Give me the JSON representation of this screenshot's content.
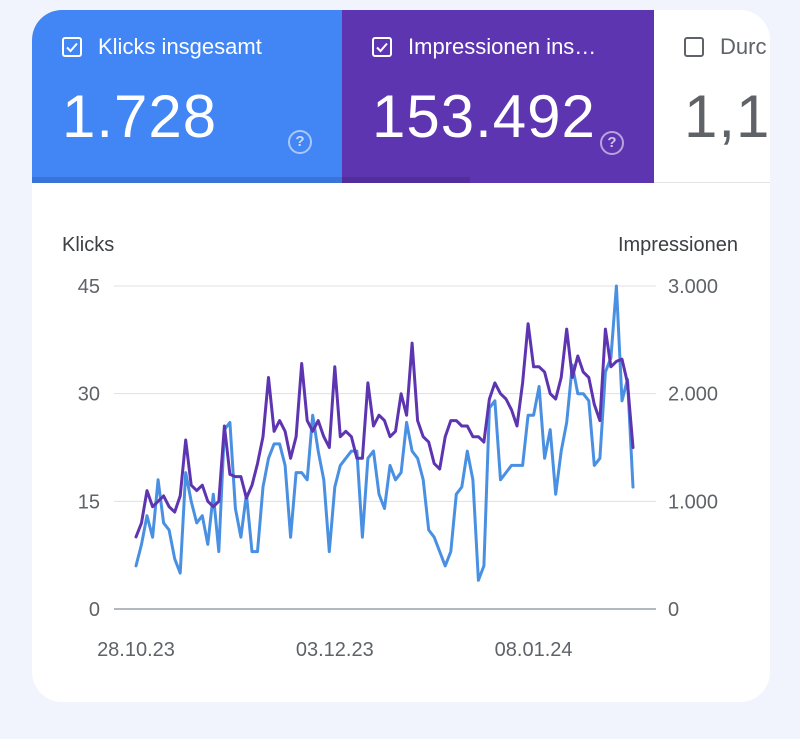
{
  "tiles": [
    {
      "label": "Klicks insgesamt",
      "value": "1.728",
      "checked": true
    },
    {
      "label": "Impressionen ins…",
      "value": "153.492",
      "checked": true
    },
    {
      "label": "Durc",
      "value": "1,1",
      "checked": false
    }
  ],
  "colors": {
    "clicks": "#4a90e2",
    "impressions": "#5e35b1",
    "grid": "#e0e0e0",
    "axis_text": "#5f6368"
  },
  "chart_data": {
    "type": "line",
    "left_axis": {
      "label": "Klicks",
      "ylim": [
        0,
        45
      ],
      "ticks": [
        "0",
        "15",
        "30",
        "45"
      ],
      "tick_values": [
        0,
        15,
        30,
        45
      ]
    },
    "right_axis": {
      "label": "Impressionen",
      "ylim": [
        0,
        3000
      ],
      "ticks": [
        "0",
        "1.000",
        "2.000",
        "3.000"
      ],
      "tick_values": [
        0,
        1000,
        2000,
        3000
      ]
    },
    "x_ticks": [
      {
        "label": "28.10.23",
        "index": 0
      },
      {
        "label": "03.12.23",
        "index": 36
      },
      {
        "label": "08.01.24",
        "index": 72
      }
    ],
    "grid": true,
    "series": [
      {
        "axis": "left",
        "values": [
          6,
          9,
          13,
          10,
          18,
          12,
          11,
          7,
          5,
          19,
          15,
          12,
          13,
          9,
          16,
          8,
          25,
          26,
          14,
          10,
          16,
          8,
          8,
          17,
          21,
          23,
          23,
          20,
          10,
          19,
          19,
          18,
          27,
          22,
          18,
          8,
          17,
          20,
          21,
          22,
          22,
          10,
          21,
          22,
          16,
          14,
          20,
          18,
          19,
          26,
          22,
          21,
          18,
          11,
          10,
          8,
          6,
          8,
          16,
          17,
          22,
          18,
          4,
          6,
          28,
          29,
          18,
          19,
          20,
          20,
          20,
          27,
          27,
          31,
          21,
          25,
          16,
          22,
          26,
          34,
          30,
          30,
          29,
          20,
          21,
          33,
          35,
          45,
          29,
          32,
          17
        ]
      },
      {
        "axis": "right",
        "values": [
          670,
          800,
          1100,
          950,
          1000,
          1050,
          950,
          900,
          1050,
          1570,
          1150,
          1100,
          1150,
          1000,
          950,
          1000,
          1700,
          1250,
          1230,
          1230,
          1030,
          1150,
          1350,
          1600,
          2150,
          1650,
          1750,
          1650,
          1400,
          1600,
          2280,
          1750,
          1650,
          1750,
          1600,
          1500,
          2250,
          1600,
          1650,
          1600,
          1400,
          1400,
          2100,
          1700,
          1800,
          1750,
          1600,
          1650,
          2000,
          1800,
          2470,
          1750,
          1600,
          1550,
          1350,
          1300,
          1600,
          1750,
          1750,
          1700,
          1700,
          1600,
          1600,
          1550,
          1950,
          2100,
          2000,
          1950,
          1850,
          1700,
          2100,
          2650,
          2250,
          2250,
          2200,
          2000,
          1950,
          2150,
          2600,
          2150,
          2350,
          2200,
          2150,
          1900,
          1750,
          2600,
          2250,
          2300,
          2320,
          2100,
          1500
        ]
      }
    ]
  }
}
